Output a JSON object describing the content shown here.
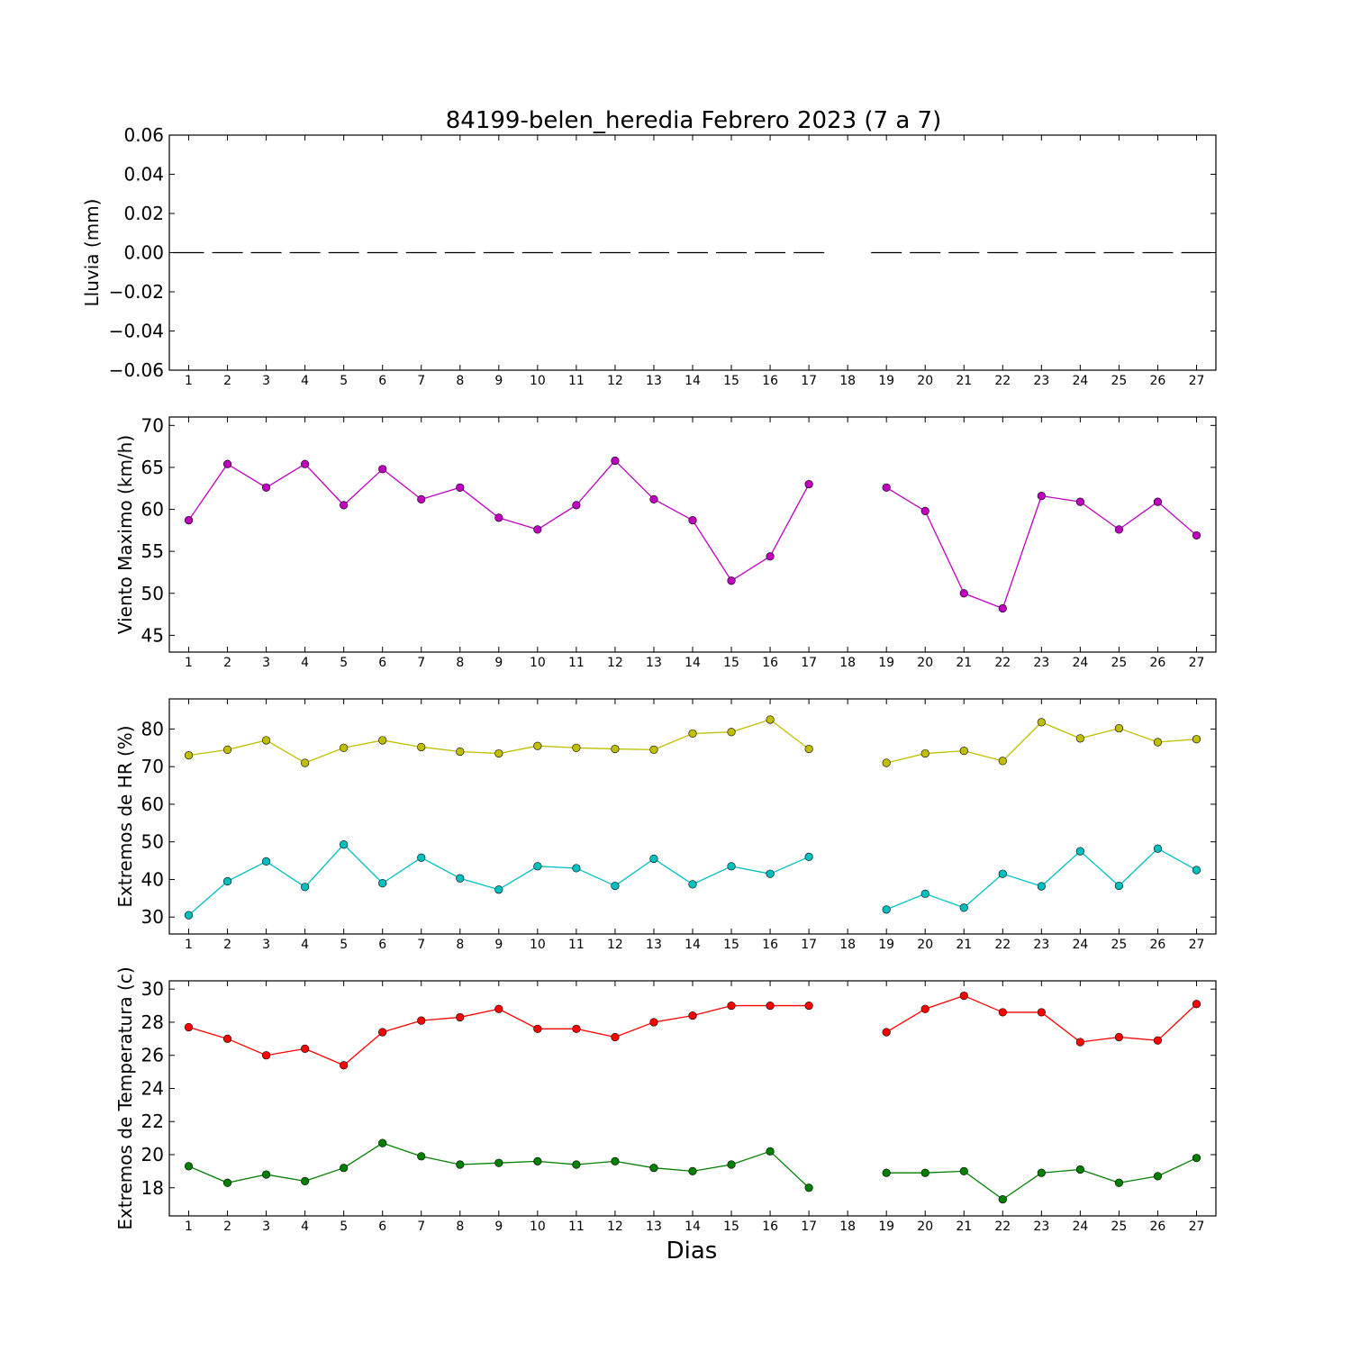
{
  "figure": {
    "title": "84199-belen_heredia Febrero 2023  (7 a 7)",
    "xlabel": "Dias"
  },
  "chart_data": [
    {
      "type": "line",
      "ylabel": "Lluvia (mm)",
      "ylim": [
        -0.06,
        0.06
      ],
      "yticks": [
        0.06,
        0.04,
        0.02,
        0.0,
        -0.02,
        -0.04,
        -0.06
      ],
      "ytick_labels": [
        "0.06",
        "0.04",
        "0.02",
        "0.00",
        "−0.02",
        "−0.04",
        "−0.06"
      ],
      "x": [
        1,
        2,
        3,
        4,
        5,
        6,
        7,
        8,
        9,
        10,
        11,
        12,
        13,
        14,
        15,
        16,
        17,
        18,
        19,
        20,
        21,
        22,
        23,
        24,
        25,
        26,
        27
      ],
      "series": [
        {
          "style": "bar-segments",
          "color": "#000000",
          "values": [
            0,
            0,
            0,
            0,
            0,
            0,
            0,
            0,
            0,
            0,
            0,
            0,
            0,
            0,
            0,
            0,
            0,
            null,
            0,
            0,
            0,
            0,
            0,
            0,
            0,
            0,
            0
          ]
        }
      ]
    },
    {
      "type": "line",
      "ylabel": "Viento Maximo (km/h)",
      "ylim": [
        43,
        71
      ],
      "yticks": [
        70,
        65,
        60,
        55,
        50,
        45
      ],
      "ytick_labels": [
        "70",
        "65",
        "60",
        "55",
        "50",
        "45"
      ],
      "x": [
        1,
        2,
        3,
        4,
        5,
        6,
        7,
        8,
        9,
        10,
        11,
        12,
        13,
        14,
        15,
        16,
        17,
        18,
        19,
        20,
        21,
        22,
        23,
        24,
        25,
        26,
        27
      ],
      "series": [
        {
          "color": "#bf00bf",
          "values": [
            58.7,
            65.4,
            62.6,
            65.4,
            60.5,
            64.8,
            61.2,
            62.6,
            59.0,
            57.6,
            60.5,
            65.8,
            61.2,
            58.7,
            51.5,
            54.4,
            63.0,
            null,
            62.6,
            59.8,
            50.0,
            48.2,
            61.6,
            60.9,
            57.6,
            60.9,
            56.9
          ]
        }
      ]
    },
    {
      "type": "line",
      "ylabel": "Extremos de HR (%)",
      "ylim": [
        25.5,
        88
      ],
      "yticks": [
        80,
        70,
        60,
        50,
        40,
        30
      ],
      "ytick_labels": [
        "80",
        "70",
        "60",
        "50",
        "40",
        "30"
      ],
      "x": [
        1,
        2,
        3,
        4,
        5,
        6,
        7,
        8,
        9,
        10,
        11,
        12,
        13,
        14,
        15,
        16,
        17,
        18,
        19,
        20,
        21,
        22,
        23,
        24,
        25,
        26,
        27
      ],
      "series": [
        {
          "color": "#bfbf00",
          "values": [
            73,
            74.5,
            77,
            71,
            75,
            77,
            75.2,
            74,
            73.5,
            75.5,
            75,
            74.7,
            74.5,
            78.8,
            79.2,
            82.5,
            74.7,
            null,
            71,
            73.5,
            74.2,
            71.5,
            81.8,
            77.5,
            80.2,
            76.5,
            77.3
          ]
        },
        {
          "color": "#00bfbf",
          "values": [
            30.5,
            39.5,
            44.8,
            38,
            49.3,
            39,
            45.8,
            40.3,
            37.3,
            43.5,
            43,
            38.3,
            45.5,
            38.7,
            43.5,
            41.5,
            46,
            null,
            32,
            36.2,
            32.5,
            41.5,
            38.2,
            47.5,
            38.3,
            48.2,
            42.5
          ]
        }
      ]
    },
    {
      "type": "line",
      "ylabel": "Extremos de Temperatura (c)",
      "ylim": [
        16.3,
        30.5
      ],
      "yticks": [
        30,
        28,
        26,
        24,
        22,
        20,
        18
      ],
      "ytick_labels": [
        "30",
        "28",
        "26",
        "24",
        "22",
        "20",
        "18"
      ],
      "x": [
        1,
        2,
        3,
        4,
        5,
        6,
        7,
        8,
        9,
        10,
        11,
        12,
        13,
        14,
        15,
        16,
        17,
        18,
        19,
        20,
        21,
        22,
        23,
        24,
        25,
        26,
        27
      ],
      "series": [
        {
          "color": "#ff0000",
          "values": [
            27.7,
            27.0,
            26.0,
            26.4,
            25.4,
            27.4,
            28.1,
            28.3,
            28.8,
            27.6,
            27.6,
            27.1,
            28.0,
            28.4,
            29.0,
            29.0,
            29.0,
            null,
            27.4,
            28.8,
            29.6,
            28.6,
            28.6,
            26.8,
            27.1,
            26.9,
            29.1
          ]
        },
        {
          "color": "#007f00",
          "values": [
            19.3,
            18.3,
            18.8,
            18.4,
            19.2,
            20.7,
            19.9,
            19.4,
            19.5,
            19.6,
            19.4,
            19.6,
            19.2,
            19.0,
            19.4,
            20.2,
            18.0,
            null,
            18.9,
            18.9,
            19.0,
            17.3,
            18.9,
            19.1,
            18.3,
            18.7,
            19.8
          ]
        }
      ]
    }
  ]
}
